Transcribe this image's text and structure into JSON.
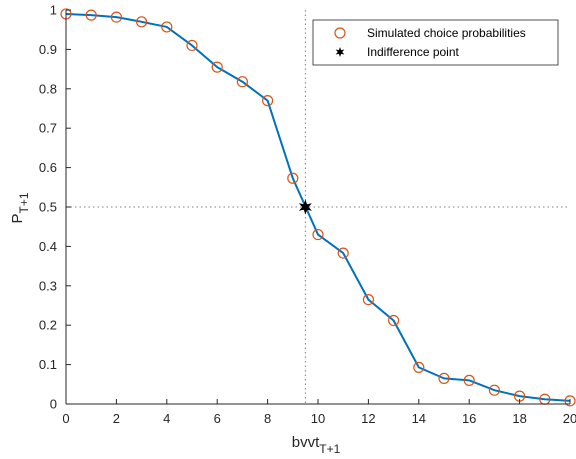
{
  "chart_data": {
    "type": "line",
    "xlabel": "bvvt",
    "xlabel_sub": "T+1",
    "ylabel": "P",
    "ylabel_sub": "T+1",
    "xlim": [
      0,
      20
    ],
    "ylim": [
      0,
      1
    ],
    "xticks": [
      0,
      2,
      4,
      6,
      8,
      10,
      12,
      14,
      16,
      18,
      20
    ],
    "yticks": [
      0,
      0.1,
      0.2,
      0.3,
      0.4,
      0.5,
      0.6,
      0.7,
      0.8,
      0.9,
      1
    ],
    "grid": false,
    "legend_position": "top-right",
    "series": [
      {
        "name": "Simulated choice probabilities",
        "marker": "circle-open",
        "line": true,
        "color": "#D95319",
        "line_color": "#0072BD",
        "x": [
          0,
          1,
          2,
          3,
          4,
          5,
          6,
          7,
          8,
          9,
          10,
          11,
          12,
          13,
          14,
          15,
          16,
          17,
          18,
          19,
          20
        ],
        "y": [
          0.99,
          0.987,
          0.982,
          0.97,
          0.957,
          0.91,
          0.855,
          0.818,
          0.77,
          0.573,
          0.43,
          0.383,
          0.265,
          0.212,
          0.093,
          0.065,
          0.06,
          0.035,
          0.02,
          0.012,
          0.008
        ]
      },
      {
        "name": "Indifference point",
        "marker": "star",
        "color": "#000000",
        "x": [
          9.5
        ],
        "y": [
          0.5
        ]
      }
    ],
    "reference_lines": {
      "x": 9.5,
      "y": 0.5,
      "style": "dotted",
      "color": "#808080"
    }
  }
}
